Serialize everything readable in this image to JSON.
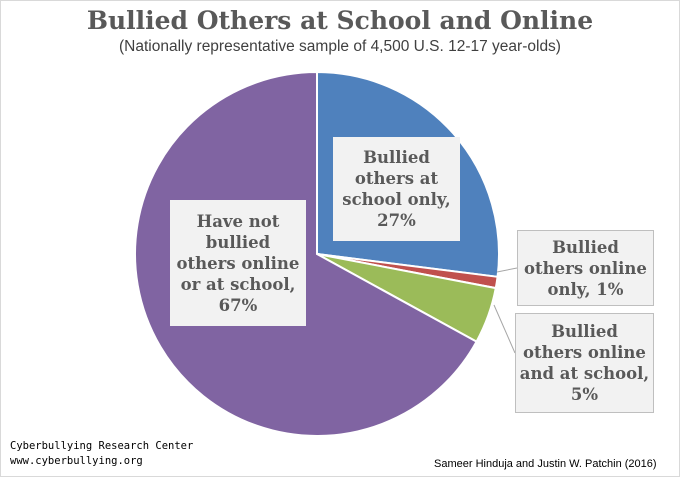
{
  "chart_data": {
    "type": "pie",
    "title": "Bullied Others at School and Online",
    "subtitle": "(Nationally representative sample of 4,500 U.S. 12-17 year-olds)",
    "slices": [
      {
        "label": "Bullied\nothers at\nschool only,\n27%",
        "value": 27,
        "color": "#4f81bd"
      },
      {
        "label": "Bullied\nothers online\nonly, 1%",
        "value": 1,
        "color": "#c0504d"
      },
      {
        "label": "Bullied\nothers online\nand at school,\n5%",
        "value": 5,
        "color": "#9bbb59"
      },
      {
        "label": "Have not\nbullied\nothers online\nor at school,\n67%",
        "value": 67,
        "color": "#8064a2"
      }
    ]
  },
  "footer": {
    "org": "Cyberbullying Research Center",
    "url": "www.cyberbullying.org",
    "authors": "Sameer Hinduja and Justin W. Patchin (2016)"
  }
}
